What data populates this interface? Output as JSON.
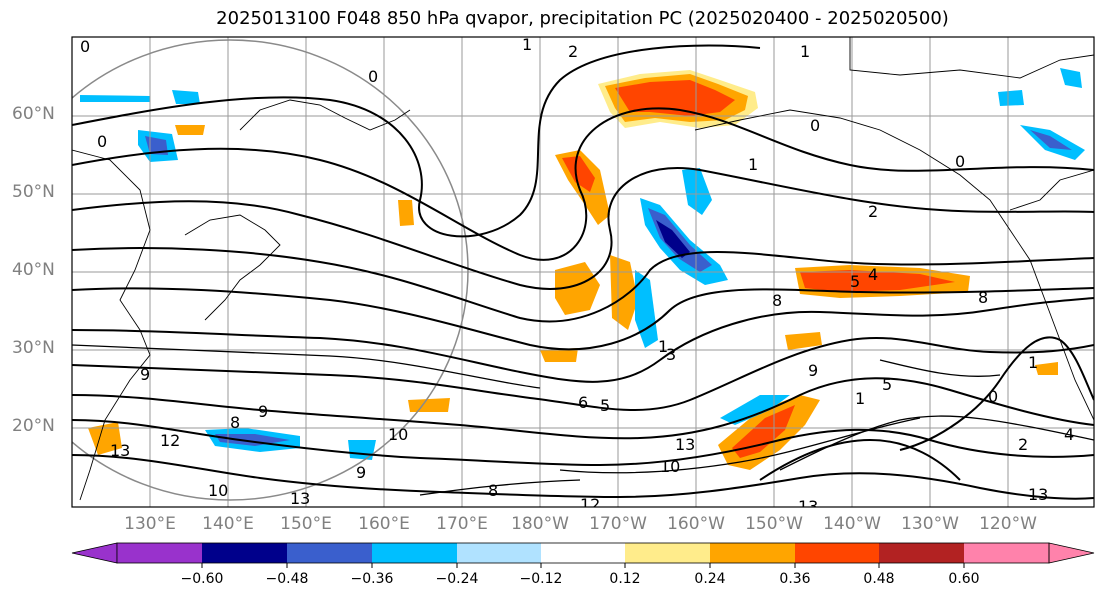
{
  "title": "2025013100 F048 850 hPa qvapor, precipitation PC (2025020400 - 2025020500)",
  "lat_ticks": [
    "60°N",
    "50°N",
    "40°N",
    "30°N",
    "20°N"
  ],
  "lon_ticks": [
    "130°E",
    "140°E",
    "150°E",
    "160°E",
    "170°E",
    "180°W",
    "170°W",
    "160°W",
    "150°W",
    "140°W",
    "130°W",
    "120°W"
  ],
  "colorbar": {
    "labels": [
      "−0.60",
      "−0.48",
      "−0.36",
      "−0.24",
      "−0.12",
      "0.12",
      "0.24",
      "0.36",
      "0.48",
      "0.60"
    ],
    "colors": [
      "#9932cc",
      "#00008b",
      "#3a5fcd",
      "#00bfff",
      "#b0e2ff",
      "#ffffff",
      "#ffec8b",
      "#ffa500",
      "#ff4500",
      "#b22222",
      "#ff82ab"
    ]
  },
  "contour_labels": [
    "0",
    "0",
    "0",
    "1",
    "2",
    "1",
    "0",
    "0",
    "1",
    "2",
    "4",
    "5",
    "8",
    "8",
    "9",
    "13",
    "12",
    "8",
    "9",
    "10",
    "10",
    "9",
    "13",
    "10",
    "13",
    "9",
    "5",
    "6",
    "1",
    "3",
    "5",
    "0",
    "8",
    "2",
    "4",
    "12",
    "13",
    "13",
    "1",
    "1"
  ]
}
